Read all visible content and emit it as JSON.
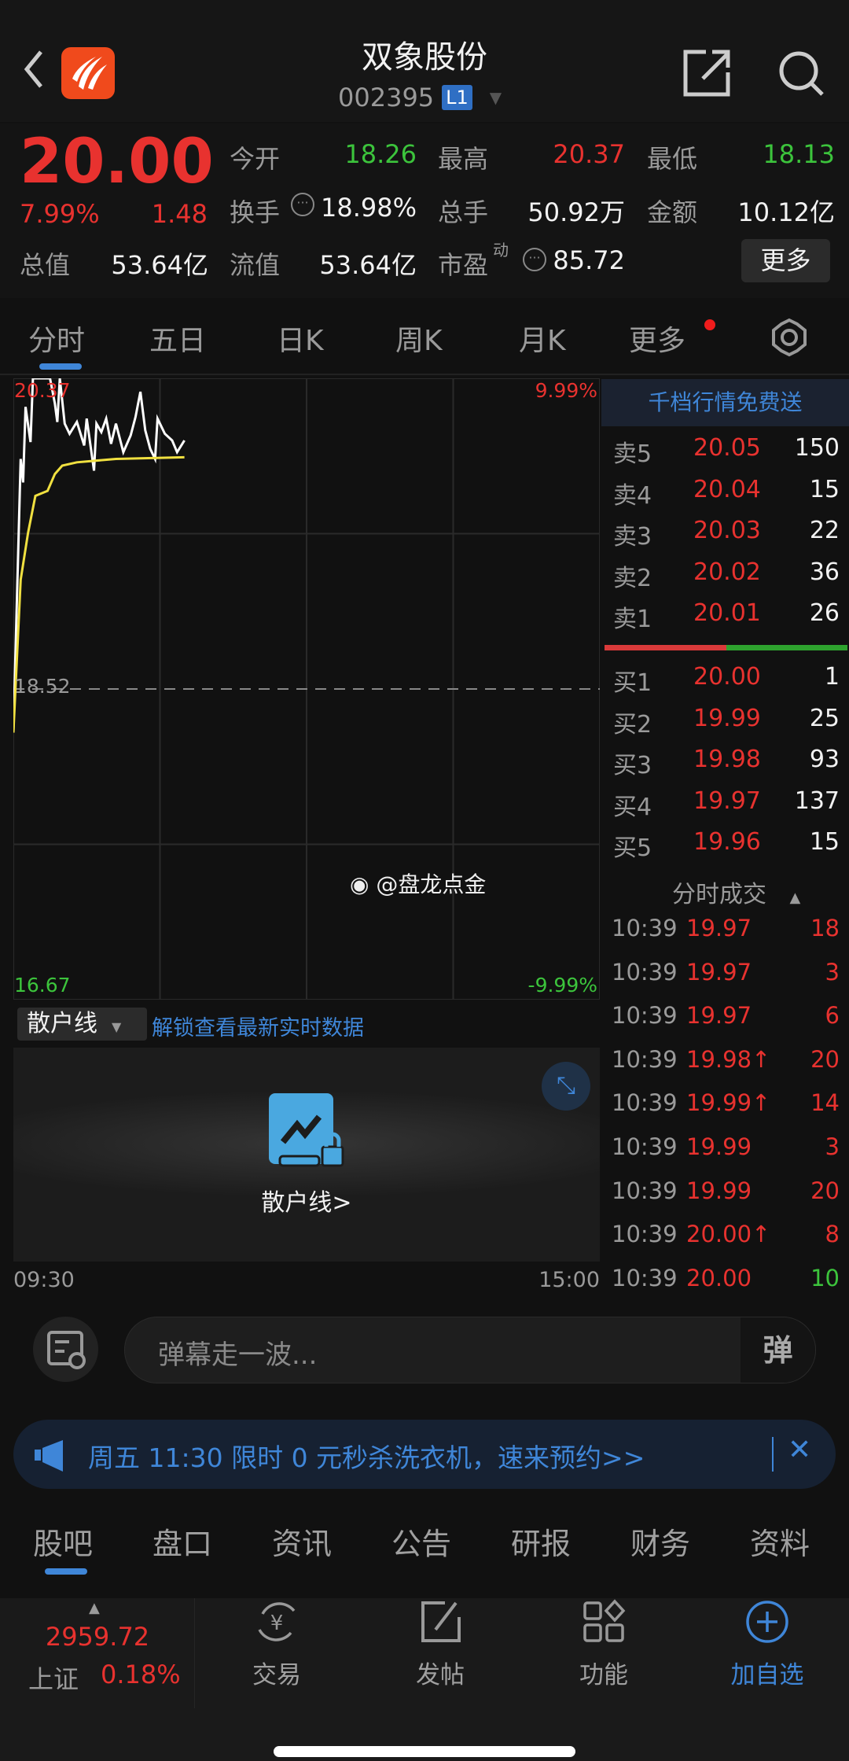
{
  "header": {
    "title": "双象股份",
    "code": "002395",
    "level_badge": "L1"
  },
  "quote": {
    "price": "20.00",
    "change_pct": "7.99%",
    "change": "1.48",
    "fields": [
      {
        "label": "今开",
        "value": "18.26",
        "color": "green"
      },
      {
        "label": "最高",
        "value": "20.37",
        "color": "red"
      },
      {
        "label": "最低",
        "value": "18.13",
        "color": "green"
      },
      {
        "label": "换手",
        "value": "18.98%",
        "color": "white"
      },
      {
        "label": "总手",
        "value": "50.92万",
        "color": "white"
      },
      {
        "label": "金额",
        "value": "10.12亿",
        "color": "white"
      },
      {
        "label": "总值",
        "value": "53.64亿",
        "color": "white"
      },
      {
        "label": "流值",
        "value": "53.64亿",
        "color": "white"
      },
      {
        "label": "市盈",
        "value": "85.72",
        "color": "white",
        "superscript": "动"
      }
    ],
    "more_button": "更多"
  },
  "chart_tabs": [
    {
      "label": "分时",
      "active": true
    },
    {
      "label": "五日"
    },
    {
      "label": "日K"
    },
    {
      "label": "周K"
    },
    {
      "label": "月K"
    },
    {
      "label": "更多"
    }
  ],
  "chart_data": {
    "type": "line",
    "y_left_labels": {
      "top": "20.37",
      "mid": "18.52",
      "bottom": "16.67"
    },
    "y_right_labels": {
      "top": "9.99%",
      "bottom": "-9.99%"
    },
    "x_labels": {
      "start": "09:30",
      "end": "15:00"
    },
    "ylim": [
      16.67,
      20.37
    ],
    "prev_close": 18.52,
    "grid": true,
    "series": [
      {
        "color": "#ffffff",
        "points": [
          [
            "09:30",
            18.26
          ],
          [
            "09:33",
            19.89
          ],
          [
            "09:34",
            19.75
          ],
          [
            "09:35",
            20.2
          ],
          [
            "09:37",
            19.99
          ],
          [
            "09:38",
            20.37
          ],
          [
            "09:45",
            20.37
          ],
          [
            "09:47",
            20.22
          ],
          [
            "09:48",
            20.11
          ],
          [
            "09:49",
            20.37
          ],
          [
            "09:51",
            20.1
          ],
          [
            "09:53",
            20.04
          ],
          [
            "09:56",
            20.11
          ],
          [
            "09:59",
            19.97
          ],
          [
            "10:00",
            20.13
          ],
          [
            "10:03",
            19.82
          ],
          [
            "10:04",
            20.1
          ],
          [
            "10:06",
            20.05
          ],
          [
            "10:08",
            20.13
          ],
          [
            "10:10",
            19.98
          ],
          [
            "10:12",
            20.1
          ],
          [
            "10:15",
            19.93
          ],
          [
            "10:18",
            20.03
          ],
          [
            "10:20",
            20.14
          ],
          [
            "10:22",
            20.29
          ],
          [
            "10:24",
            20.06
          ],
          [
            "10:26",
            19.95
          ],
          [
            "10:28",
            19.89
          ],
          [
            "10:29",
            20.13
          ],
          [
            "10:32",
            20.04
          ],
          [
            "10:35",
            20.0
          ],
          [
            "10:37",
            19.93
          ],
          [
            "10:40",
            20.0
          ]
        ]
      },
      {
        "color": "#f0e040",
        "points": [
          [
            "09:30",
            18.26
          ],
          [
            "09:33",
            19.17
          ],
          [
            "09:36",
            19.45
          ],
          [
            "09:39",
            19.67
          ],
          [
            "09:44",
            19.7
          ],
          [
            "09:47",
            19.8
          ],
          [
            "09:50",
            19.85
          ],
          [
            "09:56",
            19.87
          ],
          [
            "10:12",
            19.89
          ],
          [
            "10:40",
            19.9
          ]
        ]
      }
    ]
  },
  "watermark": "@盘龙点金",
  "orderbook": {
    "promo": "千档行情免费送",
    "asks": [
      {
        "label": "卖5",
        "price": "20.05",
        "vol": "150"
      },
      {
        "label": "卖4",
        "price": "20.04",
        "vol": "15"
      },
      {
        "label": "卖3",
        "price": "20.03",
        "vol": "22"
      },
      {
        "label": "卖2",
        "price": "20.02",
        "vol": "36"
      },
      {
        "label": "卖1",
        "price": "20.01",
        "vol": "26"
      }
    ],
    "bids": [
      {
        "label": "买1",
        "price": "20.00",
        "vol": "1"
      },
      {
        "label": "买2",
        "price": "19.99",
        "vol": "25"
      },
      {
        "label": "买3",
        "price": "19.98",
        "vol": "93"
      },
      {
        "label": "买4",
        "price": "19.97",
        "vol": "137"
      },
      {
        "label": "买5",
        "price": "19.96",
        "vol": "15"
      }
    ],
    "bid_ratio": 0.5
  },
  "trades": {
    "title": "分时成交",
    "rows": [
      {
        "time": "10:39",
        "price": "19.97",
        "vol": "18",
        "vol_color": "red"
      },
      {
        "time": "10:39",
        "price": "19.97",
        "vol": "3",
        "vol_color": "red"
      },
      {
        "time": "10:39",
        "price": "19.97",
        "vol": "6",
        "vol_color": "red"
      },
      {
        "time": "10:39",
        "price": "19.98↑",
        "vol": "20",
        "vol_color": "red"
      },
      {
        "time": "10:39",
        "price": "19.99↑",
        "vol": "14",
        "vol_color": "red"
      },
      {
        "time": "10:39",
        "price": "19.99",
        "vol": "3",
        "vol_color": "red"
      },
      {
        "time": "10:39",
        "price": "19.99",
        "vol": "20",
        "vol_color": "red"
      },
      {
        "time": "10:39",
        "price": "20.00↑",
        "vol": "8",
        "vol_color": "red"
      },
      {
        "time": "10:39",
        "price": "20.00",
        "vol": "10",
        "vol_color": "green"
      }
    ]
  },
  "indicator": {
    "select": "散户线",
    "unlock_link": "解锁查看最新实时数据",
    "locked_label": "散户线>"
  },
  "danmu": {
    "placeholder": "弹幕走一波...",
    "send": "弹"
  },
  "banner": {
    "text": "周五 11:30 限时 0 元秒杀洗衣机，速来预约>>"
  },
  "bottom_tabs": [
    {
      "label": "股吧",
      "active": true
    },
    {
      "label": "盘口"
    },
    {
      "label": "资讯"
    },
    {
      "label": "公告"
    },
    {
      "label": "研报"
    },
    {
      "label": "财务"
    },
    {
      "label": "资料"
    }
  ],
  "index": {
    "value": "2959.72",
    "name": "上证",
    "change": "0.18%"
  },
  "toolbar": [
    {
      "label": "交易",
      "icon": "yuan-exchange-icon"
    },
    {
      "label": "发帖",
      "icon": "edit-icon"
    },
    {
      "label": "功能",
      "icon": "grid-icon"
    },
    {
      "label": "加自选",
      "icon": "plus-circle-icon"
    }
  ],
  "colors": {
    "up": "#e8322f",
    "down": "#3cc43c",
    "accent": "#3f86d8",
    "avg_line": "#f0e040"
  }
}
